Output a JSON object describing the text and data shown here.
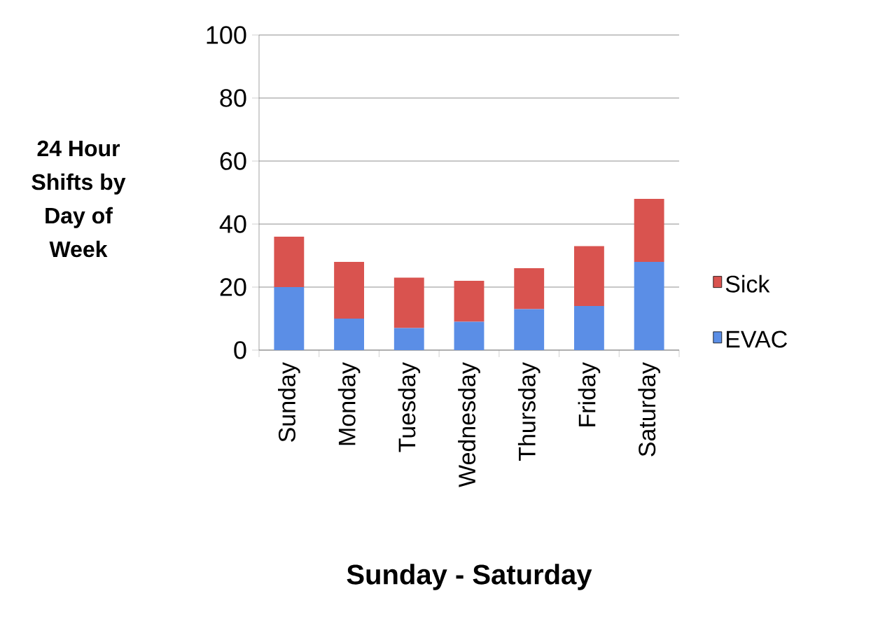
{
  "chart_data": {
    "type": "bar",
    "stacked": true,
    "ylabel": "24 Hour Shifts by Day of Week",
    "xlabel": "Sunday - Saturday",
    "categories": [
      "Sunday",
      "Monday",
      "Tuesday",
      "Wednesday",
      "Thursday",
      "Friday",
      "Saturday"
    ],
    "series": [
      {
        "name": "EVAC",
        "color": "#5b8ee6",
        "values": [
          20,
          10,
          7,
          9,
          13,
          14,
          28
        ]
      },
      {
        "name": "Sick",
        "color": "#d9534f",
        "values": [
          16,
          18,
          16,
          13,
          13,
          19,
          20
        ]
      }
    ],
    "ylim": [
      0,
      100
    ],
    "yticks": [
      0,
      20,
      40,
      60,
      80,
      100
    ],
    "grid": "y",
    "legend": "right"
  }
}
